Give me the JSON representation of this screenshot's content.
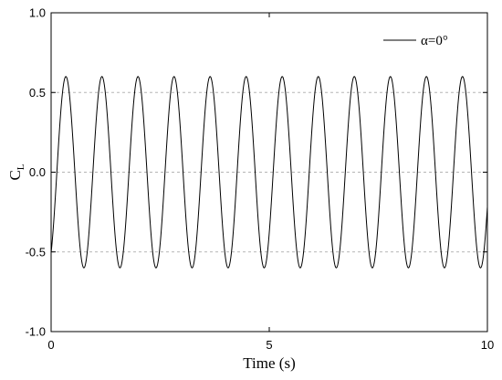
{
  "chart_data": {
    "type": "line",
    "title": "",
    "xlabel": "Time (s)",
    "ylabel_main": "C",
    "ylabel_sub": "L",
    "xlim": [
      0,
      10
    ],
    "ylim": [
      -1.0,
      1.0
    ],
    "xticks": [
      0,
      5,
      10
    ],
    "xtick_labels": [
      "0",
      "5",
      "10"
    ],
    "yticks": [
      -1.0,
      -0.5,
      0.0,
      0.5,
      1.0
    ],
    "ytick_labels": [
      "-1.0",
      "-0.5",
      "0.0",
      "0.5",
      "1.0"
    ],
    "grid_y_dashed": [
      -0.5,
      0.0,
      0.5
    ],
    "legend_position": "top-right",
    "series": [
      {
        "name": "α=0°",
        "color": "#000000",
        "function": "amplitude * sin(2*pi*frequency*t + phase)",
        "amplitude": 0.6,
        "frequency": 1.21,
        "phase": -1.0,
        "x_range": [
          0,
          10
        ]
      }
    ]
  }
}
